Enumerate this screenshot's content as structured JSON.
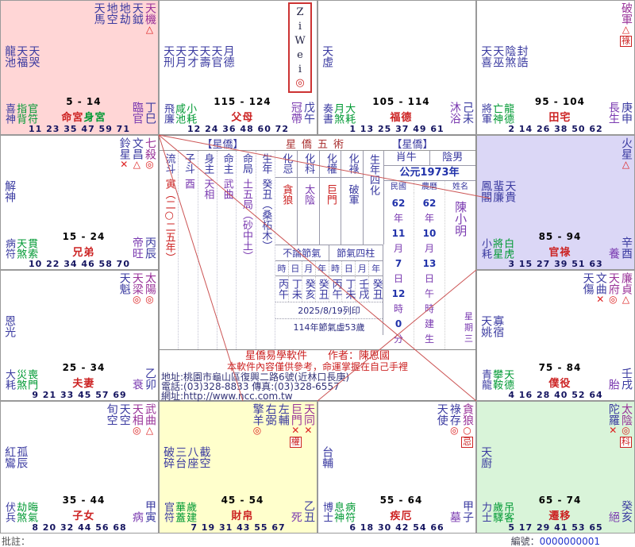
{
  "palaces": [
    {
      "branch": "巳",
      "bg": "#ffd6d6",
      "top_stars": [
        {
          "n": "天馬",
          "c": "minor"
        },
        {
          "n": "地空",
          "c": "minor"
        },
        {
          "n": "地劫",
          "c": "minor"
        },
        {
          "n": "天鉞",
          "c": "minor"
        },
        {
          "n": "天機",
          "c": "major",
          "m": "△"
        }
      ],
      "left_stars": [
        "龍池",
        "天福",
        "天哭"
      ],
      "petty": [
        "喜神",
        "指背",
        "官符"
      ],
      "range": "5 - 14",
      "palace": "命宮",
      "palace2": "身宮",
      "state": "臨官",
      "stem": "丁巳",
      "ages": "11 23 35 47 59 71"
    },
    {
      "branch": "午",
      "bg": "#ffffff",
      "ziwei": true,
      "top_stars": [],
      "left_stars": [
        "天刑",
        "天月",
        "天才",
        "天壽",
        "天官",
        "月德"
      ],
      "petty": [
        "飛廉",
        "咸池",
        "小耗"
      ],
      "range": "115 - 124",
      "palace": "父母",
      "state": "冠帶",
      "stem": "戊午",
      "ages": "12 24 36 48 60 72"
    },
    {
      "branch": "未",
      "bg": "#ffffff",
      "top_stars": [],
      "left_stars": [
        "天虛"
      ],
      "petty": [
        "奏書",
        "月煞",
        "大耗"
      ],
      "range": "105 - 114",
      "palace": "福德",
      "state": "沐浴",
      "stem": "己未",
      "ages": "1 13 25 37 49 61"
    },
    {
      "branch": "申",
      "bg": "#ffffff",
      "top_stars": [
        {
          "n": "破軍",
          "c": "major",
          "m": "△",
          "h": "祿"
        }
      ],
      "left_stars": [
        "天喜",
        "天巫",
        "陰煞",
        "封誥"
      ],
      "petty": [
        "將軍",
        "亡神",
        "龍德"
      ],
      "range": "95 - 104",
      "palace": "田宅",
      "state": "長生",
      "stem": "庚申",
      "ages": "2 14 26 38 50 62"
    },
    {
      "branch": "辰",
      "bg": "#ffffff",
      "top_stars": [
        {
          "n": "鈴星",
          "c": "minor",
          "m": "✕"
        },
        {
          "n": "文昌",
          "c": "minor",
          "m": "△"
        },
        {
          "n": "七殺",
          "c": "major",
          "m": "◎"
        }
      ],
      "left_stars": [
        "解神"
      ],
      "petty": [
        "病符",
        "天煞",
        "貫索"
      ],
      "range": "15 - 24",
      "palace": "兄弟",
      "state": "帝旺",
      "stem": "丙辰",
      "ages": "10 22 34 46 58 70"
    },
    {
      "branch": "酉",
      "bg": "#dbd7f6",
      "top_stars": [
        {
          "n": "火星",
          "c": "minor",
          "m": "△"
        }
      ],
      "left_stars": [
        "鳳閣",
        "蜚廉",
        "天貴"
      ],
      "petty": [
        "小耗",
        "將星",
        "白虎"
      ],
      "range": "85 - 94",
      "palace": "官祿",
      "state": "養",
      "stem": "辛酉",
      "ages": "3 15 27 39 51 63"
    },
    {
      "branch": "卯",
      "bg": "#ffffff",
      "top_stars": [
        {
          "n": "天魁",
          "c": "minor"
        },
        {
          "n": "天梁",
          "c": "major",
          "m": "◎"
        },
        {
          "n": "太陽",
          "c": "major",
          "m": "◎"
        }
      ],
      "left_stars": [
        "恩光"
      ],
      "petty": [
        "大耗",
        "災煞",
        "喪門"
      ],
      "range": "25 - 34",
      "palace": "夫妻",
      "state": "衰",
      "stem": "乙卯",
      "ages": "9 21 33 45 57 69"
    },
    {
      "branch": "戌",
      "bg": "#ffffff",
      "top_stars": [
        {
          "n": "天傷",
          "c": "minor"
        },
        {
          "n": "文曲",
          "c": "minor",
          "m": "✕"
        },
        {
          "n": "天府",
          "c": "major",
          "m": "◎"
        },
        {
          "n": "廉貞",
          "c": "major",
          "m": "△"
        }
      ],
      "left_stars": [
        "天姚",
        "寡宿"
      ],
      "petty": [
        "青龍",
        "攀鞍",
        "天德"
      ],
      "range": "75 - 84",
      "palace": "僕役",
      "state": "胎",
      "stem": "壬戌",
      "ages": "4 16 28 40 52 64"
    },
    {
      "branch": "寅",
      "bg": "#ffffff",
      "top_stars": [
        {
          "n": "旬空",
          "c": "minor"
        },
        {
          "n": "天空",
          "c": "minor"
        },
        {
          "n": "天相",
          "c": "major",
          "m": "◎"
        },
        {
          "n": "武曲",
          "c": "major",
          "m": "△"
        }
      ],
      "left_stars": [
        "紅鸞",
        "孤辰"
      ],
      "petty": [
        "伏兵",
        "劫煞",
        "晦氣"
      ],
      "range": "35 - 44",
      "palace": "子女",
      "state": "病",
      "stem": "甲寅",
      "ages": "8 20 32 44 56 68"
    },
    {
      "branch": "丑",
      "bg": "#ffffcc",
      "top_stars": [
        {
          "n": "擎羊",
          "c": "minor",
          "m": "◎"
        },
        {
          "n": "右弼",
          "c": "minor"
        },
        {
          "n": "左輔",
          "c": "minor"
        },
        {
          "n": "巨門",
          "c": "major",
          "m": "✕",
          "h": "權"
        },
        {
          "n": "天同",
          "c": "major",
          "m": "✕"
        }
      ],
      "left_stars": [
        "破碎",
        "三台",
        "八座",
        "截空"
      ],
      "petty": [
        "官符",
        "華蓋",
        "歲建"
      ],
      "range": "45 - 54",
      "palace": "財帛",
      "state": "死",
      "stem": "乙丑",
      "ages": "7 19 31 43 55 67"
    },
    {
      "branch": "子",
      "bg": "#ffffff",
      "top_stars": [
        {
          "n": "天使",
          "c": "minor"
        },
        {
          "n": "祿存",
          "c": "minor",
          "m": "◎"
        },
        {
          "n": "貪狼",
          "c": "major",
          "m": "○",
          "h": "忌"
        }
      ],
      "left_stars": [
        "台輔"
      ],
      "petty": [
        "博士",
        "息神",
        "病符"
      ],
      "range": "55 - 64",
      "palace": "疾厄",
      "state": "墓",
      "stem": "甲子",
      "ages": "6 18 30 42 54 66"
    },
    {
      "branch": "亥",
      "bg": "#d9f4d9",
      "top_stars": [
        {
          "n": "陀羅",
          "c": "minor",
          "m": "✕"
        },
        {
          "n": "太陰",
          "c": "major",
          "m": "◎",
          "h": "科"
        }
      ],
      "left_stars": [
        "天廚"
      ],
      "petty": [
        "力士",
        "歲驛",
        "吊客"
      ],
      "range": "65 - 74",
      "palace": "遷移",
      "state": "絕",
      "stem": "癸亥",
      "ages": "5 17 29 41 53 65"
    }
  ],
  "center": {
    "header": {
      "left": "【星僑】",
      "middle": "星僑五術",
      "right": "【星僑】"
    },
    "ziwei_label": {
      "letters": [
        "Z",
        "i",
        "W",
        "e",
        "i"
      ],
      "mark": "◎"
    },
    "basics": [
      {
        "label": "流斗",
        "value": "寅（二○二五年）",
        "color": "red"
      },
      {
        "label": "子斗",
        "value": "酉",
        "color": "purple"
      },
      {
        "label": "身主",
        "value": "天相",
        "color": "purple"
      },
      {
        "label": "命主",
        "value": "武曲",
        "color": "purple"
      },
      {
        "label": "命局",
        "value": "土五局（砂中土）",
        "color": "purple"
      },
      {
        "label": "生年",
        "value": "癸丑（桑柘木）",
        "color": "navy"
      }
    ],
    "sihua": {
      "label": "生年四化",
      "items": [
        {
          "label": "化忌",
          "value": "貪狼",
          "color": "red"
        },
        {
          "label": "化科",
          "value": "太陰",
          "color": "purple"
        },
        {
          "label": "化權",
          "value": "巨門",
          "color": "red"
        },
        {
          "label": "化祿",
          "value": "破軍",
          "color": "navy"
        }
      ]
    },
    "pillars": {
      "groups": [
        {
          "title": "不論節氣",
          "cols": [
            "丙午",
            "丁未",
            "癸亥",
            "癸丑"
          ]
        },
        {
          "title": "節氣四柱",
          "cols": [
            "丙午",
            "丁未",
            "壬戌",
            "癸丑"
          ]
        }
      ],
      "subheaders": [
        "時",
        "日",
        "月",
        "年",
        "時",
        "日",
        "月",
        "年"
      ]
    },
    "print_date": "2025/8/19列印",
    "age_note": "114年節氣虛53歲",
    "person": {
      "zodiac": "肖牛",
      "yinyang": "陰男",
      "year": "公元1973年",
      "cols": [
        {
          "label": "民國",
          "lines": [
            "62",
            "年",
            "11",
            "月",
            "7",
            "日",
            "12",
            "時",
            "0",
            "分"
          ]
        },
        {
          "label": "農曆",
          "lines": [
            "62",
            "年",
            "10",
            "月",
            "13",
            "日",
            "午",
            "時",
            "建",
            "生"
          ]
        },
        {
          "label": "姓名",
          "name": "陳小明",
          "weekday": [
            "星",
            "期",
            "三"
          ]
        }
      ]
    },
    "info": {
      "line1": "星僑易學軟件　　作者：陳恩國",
      "line2": "本軟件內容僅供參考，命運掌握在自己手裡",
      "line3": "地址:桃園市龜山區復興二路6號(近林口長庚)",
      "line4": "電話:(03)328-8833 傳真:(03)328-6557",
      "line5": "網址:http://www.ncc.com.tw"
    }
  },
  "footer": {
    "left_label": "批註：",
    "right_label": "編號：",
    "serial": "0000000001"
  },
  "colors": {
    "major_star": "#993399",
    "minor_star": "#3a3aa0",
    "deity_green": "#009933",
    "palace_red": "#cc2222",
    "body_green": "#009933",
    "line_red": "#cc5555",
    "bg_life": "#ffd6d6",
    "bg_career": "#dbd7f6",
    "bg_wealth": "#ffffcc",
    "bg_travel": "#d9f4d9"
  }
}
